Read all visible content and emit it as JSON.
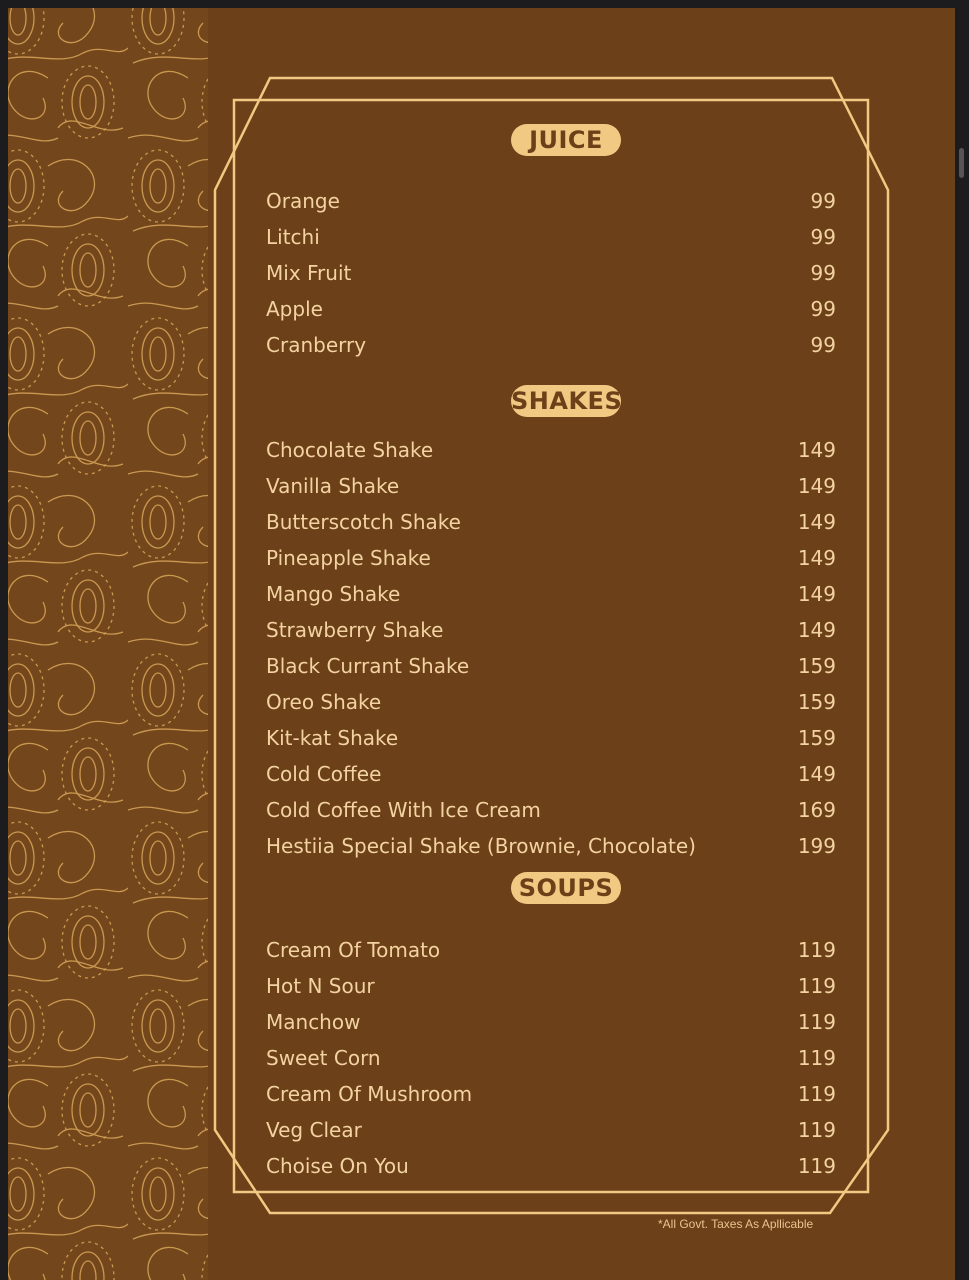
{
  "colors": {
    "background": "#6c4018",
    "gold": "#f1c982",
    "text": "#f3d3a1"
  },
  "sections": [
    {
      "title": "JUICE",
      "items": [
        {
          "name": "Orange",
          "price": "99"
        },
        {
          "name": "Litchi",
          "price": "99"
        },
        {
          "name": "Mix Fruit",
          "price": "99"
        },
        {
          "name": "Apple",
          "price": "99"
        },
        {
          "name": "Cranberry",
          "price": "99"
        }
      ]
    },
    {
      "title": "SHAKES",
      "items": [
        {
          "name": "Chocolate Shake",
          "price": "149"
        },
        {
          "name": "Vanilla Shake",
          "price": "149"
        },
        {
          "name": "Butterscotch Shake",
          "price": "149"
        },
        {
          "name": "Pineapple Shake",
          "price": "149"
        },
        {
          "name": "Mango Shake",
          "price": "149"
        },
        {
          "name": "Strawberry Shake",
          "price": "149"
        },
        {
          "name": "Black Currant Shake",
          "price": "159"
        },
        {
          "name": "Oreo Shake",
          "price": "159"
        },
        {
          "name": "Kit-kat Shake",
          "price": "159"
        },
        {
          "name": "Cold Coffee",
          "price": "149"
        },
        {
          "name": "Cold Coffee With Ice Cream",
          "price": "169"
        },
        {
          "name": "Hestiia Special Shake (Brownie, Chocolate)",
          "price": "199"
        }
      ]
    },
    {
      "title": "SOUPS",
      "items": [
        {
          "name": "Cream Of Tomato",
          "price": "119"
        },
        {
          "name": "Hot N Sour",
          "price": "119"
        },
        {
          "name": "Manchow",
          "price": "119"
        },
        {
          "name": "Sweet Corn",
          "price": "119"
        },
        {
          "name": "Cream Of Mushroom",
          "price": "119"
        },
        {
          "name": "Veg Clear",
          "price": "119"
        },
        {
          "name": "Choise On You",
          "price": "119"
        }
      ]
    }
  ],
  "footer_note": "*All Govt. Taxes As Apllicable"
}
